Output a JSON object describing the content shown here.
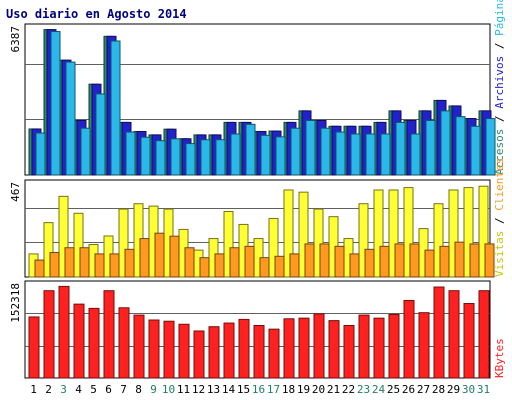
{
  "title": "Uso diario en Agosto 2014",
  "colors": {
    "accesos": "#2a8a6a",
    "archivos": "#2222cc",
    "paginas": "#29b8e8",
    "visitas": "#ffff33",
    "clientes": "#ff9922",
    "kbytes": "#ff2020",
    "frame": "#000000",
    "grid": "#606060",
    "weekend_label": "#208060",
    "weekday_label": "#000000",
    "day_label": "#000080"
  },
  "chart_data": [
    {
      "type": "bar",
      "panel": "hits",
      "ymax_label": "6387",
      "ymax": 6387,
      "right_labels": [
        {
          "text": "Accesos",
          "color": "#2a8a6a"
        },
        {
          "text": "Archivos",
          "color": "#2222cc"
        },
        {
          "text": "Páginas",
          "color": "#29b8e8"
        }
      ],
      "categories": [
        "1",
        "2",
        "3",
        "4",
        "5",
        "6",
        "7",
        "8",
        "9",
        "10",
        "11",
        "12",
        "13",
        "14",
        "15",
        "16",
        "17",
        "18",
        "19",
        "20",
        "21",
        "22",
        "23",
        "24",
        "25",
        "26",
        "27",
        "28",
        "29",
        "30",
        "31"
      ],
      "series": [
        {
          "name": "Accesos",
          "values": [
            2000,
            6317,
            4989,
            2369,
            3945,
            6025,
            2285,
            1891,
            1742,
            1991,
            1575,
            1742,
            1742,
            2285,
            2285,
            1891,
            1908,
            2285,
            2786,
            2369,
            2117,
            2117,
            2117,
            2285,
            2786,
            2369,
            2786,
            3241,
            3001,
            2453,
            2786
          ]
        },
        {
          "name": "Archivos",
          "values": [
            2000,
            6317,
            4989,
            2369,
            3945,
            6025,
            2285,
            1891,
            1742,
            1991,
            1575,
            1742,
            1742,
            2285,
            2285,
            1891,
            1908,
            2285,
            2786,
            2369,
            2117,
            2117,
            2117,
            2285,
            2786,
            2369,
            2786,
            3241,
            3001,
            2453,
            2786
          ]
        },
        {
          "name": "Páginas",
          "values": [
            1824,
            6233,
            4905,
            2033,
            3521,
            5823,
            1866,
            1641,
            1492,
            1573,
            1365,
            1533,
            1533,
            1783,
            2201,
            1724,
            1658,
            2033,
            2369,
            2033,
            1866,
            1783,
            1783,
            1783,
            2285,
            1783,
            2369,
            2786,
            2535,
            2117,
            2453
          ]
        }
      ]
    },
    {
      "type": "bar",
      "panel": "visits",
      "ymax_label": "467",
      "ymax": 467,
      "right_labels": [
        {
          "text": "Visitas",
          "color": "#c8c800"
        },
        {
          "text": "Clientes",
          "color": "#ff9922"
        }
      ],
      "categories": [
        "1",
        "2",
        "3",
        "4",
        "5",
        "6",
        "7",
        "8",
        "9",
        "10",
        "11",
        "12",
        "13",
        "14",
        "15",
        "16",
        "17",
        "18",
        "19",
        "20",
        "21",
        "22",
        "23",
        "24",
        "25",
        "26",
        "27",
        "28",
        "29",
        "30",
        "31"
      ],
      "series": [
        {
          "name": "Visitas",
          "values": [
            116,
            273,
            405,
            320,
            163,
            206,
            341,
            368,
            356,
            341,
            239,
            135,
            193,
            329,
            264,
            193,
            294,
            437,
            426,
            341,
            303,
            193,
            368,
            437,
            437,
            449,
            243,
            368,
            437,
            449,
            456
          ]
        },
        {
          "name": "Clientes",
          "values": [
            85,
            123,
            147,
            147,
            116,
            116,
            139,
            193,
            220,
            205,
            147,
            97,
            116,
            147,
            154,
            97,
            104,
            116,
            166,
            166,
            154,
            116,
            139,
            154,
            166,
            166,
            135,
            154,
            175,
            166,
            166
          ]
        }
      ]
    },
    {
      "type": "bar",
      "panel": "kbytes",
      "ymax_label": "152318",
      "ymax": 152318,
      "right_labels": [
        {
          "text": "KBytes",
          "color": "#ff2020"
        }
      ],
      "categories": [
        "1",
        "2",
        "3",
        "4",
        "5",
        "6",
        "7",
        "8",
        "9",
        "10",
        "11",
        "12",
        "13",
        "14",
        "15",
        "16",
        "17",
        "18",
        "19",
        "20",
        "21",
        "22",
        "23",
        "24",
        "25",
        "26",
        "27",
        "28",
        "29",
        "30",
        "31"
      ],
      "series": [
        {
          "name": "KBytes",
          "values": [
            100000,
            143000,
            150000,
            121000,
            114000,
            143000,
            115000,
            103000,
            95000,
            93000,
            88000,
            77000,
            84000,
            90000,
            96000,
            86000,
            80000,
            97000,
            98000,
            105000,
            94000,
            86000,
            103000,
            98000,
            104000,
            127000,
            107000,
            149000,
            143000,
            122000,
            143000
          ]
        }
      ]
    }
  ],
  "x_labels": [
    {
      "text": "1",
      "weekend": false
    },
    {
      "text": "2",
      "weekend": false
    },
    {
      "text": "3",
      "weekend": true
    },
    {
      "text": "4",
      "weekend": false
    },
    {
      "text": "5",
      "weekend": false
    },
    {
      "text": "6",
      "weekend": false
    },
    {
      "text": "7",
      "weekend": false
    },
    {
      "text": "8",
      "weekend": false
    },
    {
      "text": "9",
      "weekend": true
    },
    {
      "text": "10",
      "weekend": true
    },
    {
      "text": "11",
      "weekend": false
    },
    {
      "text": "12",
      "weekend": false
    },
    {
      "text": "13",
      "weekend": false
    },
    {
      "text": "14",
      "weekend": false
    },
    {
      "text": "15",
      "weekend": false
    },
    {
      "text": "16",
      "weekend": true
    },
    {
      "text": "17",
      "weekend": true
    },
    {
      "text": "18",
      "weekend": false
    },
    {
      "text": "19",
      "weekend": false
    },
    {
      "text": "20",
      "weekend": false
    },
    {
      "text": "21",
      "weekend": false
    },
    {
      "text": "22",
      "weekend": false
    },
    {
      "text": "23",
      "weekend": true
    },
    {
      "text": "24",
      "weekend": true
    },
    {
      "text": "25",
      "weekend": false
    },
    {
      "text": "26",
      "weekend": false
    },
    {
      "text": "27",
      "weekend": false
    },
    {
      "text": "28",
      "weekend": false
    },
    {
      "text": "29",
      "weekend": false
    },
    {
      "text": "30",
      "weekend": true
    },
    {
      "text": "31",
      "weekend": true
    }
  ]
}
